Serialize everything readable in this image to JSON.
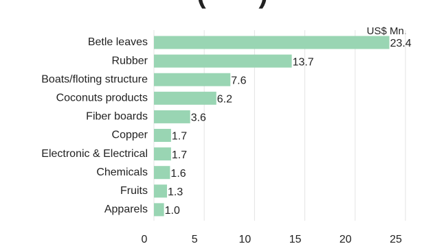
{
  "chart_data": {
    "type": "bar",
    "orientation": "horizontal",
    "title": "",
    "unit_label": "US$ Mn.",
    "categories": [
      "Betle leaves",
      "Rubber",
      "Boats/floting structure",
      "Coconuts products",
      "Fiber boards",
      "Copper",
      "Electronic & Electrical",
      "Chemicals",
      "Fruits",
      "Apparels"
    ],
    "values": [
      23.4,
      13.7,
      7.6,
      6.2,
      3.6,
      1.7,
      1.7,
      1.6,
      1.3,
      1.0
    ],
    "value_labels": [
      "23.4",
      "13.7",
      "7.6",
      "6.2",
      "3.6",
      "1.7",
      "1.7",
      "1.6",
      "1.3",
      "1.0"
    ],
    "xlim": [
      0,
      25
    ],
    "xticks": [
      "0",
      "5",
      "10",
      "15",
      "20",
      "25"
    ],
    "grid": true,
    "bar_color": "#99d5b3",
    "legend": "none"
  }
}
